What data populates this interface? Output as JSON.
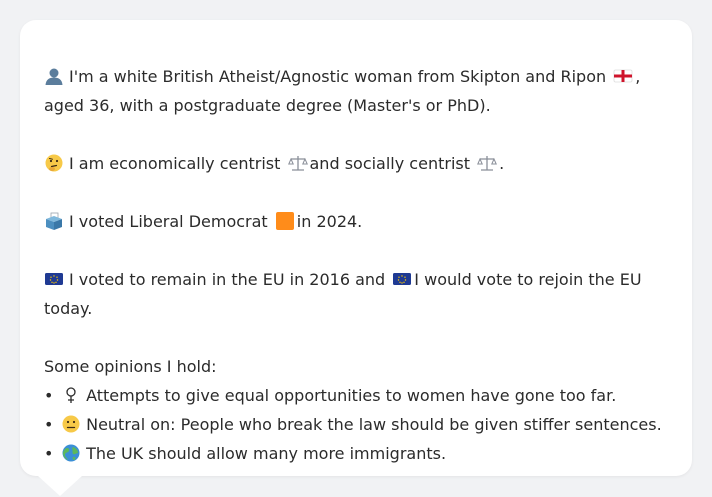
{
  "bio": {
    "line1": "I'm a white British Atheist/Agnostic woman from Skipton and Ripon",
    "line1_end": ",",
    "line2": "aged 36, with a postgraduate degree (Master's or PhD).",
    "econ_a": "I am economically centrist",
    "econ_b": "and socially centrist",
    "econ_c": ".",
    "vote_a": "I voted Liberal Democrat",
    "vote_b": "in 2024.",
    "eu_a": "I voted to remain in the EU in 2016 and",
    "eu_b": "I would vote to rejoin the EU",
    "eu_c": "today."
  },
  "opinions": {
    "heading": "Some opinions I hold:",
    "bullet": "•",
    "items": [
      {
        "icon": "female-sign-icon",
        "text": "Attempts to give equal opportunities to women have gone too far."
      },
      {
        "icon": "neutral-face-icon",
        "text": "Neutral on: People who break the law should be given stiffer sentences."
      },
      {
        "icon": "globe-icon",
        "text": "The UK should allow many more immigrants."
      }
    ]
  },
  "colors": {
    "libdem": "#ff8c1a",
    "eu_blue": "#1f3a93",
    "text": "#2b2b2b"
  }
}
